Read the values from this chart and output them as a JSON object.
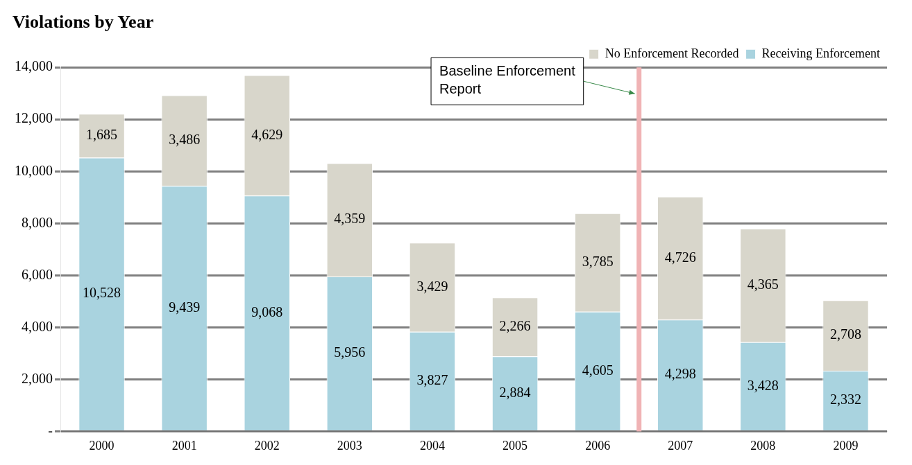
{
  "chart_data": {
    "type": "bar",
    "title": "Violations by Year",
    "stacked": true,
    "grid": "y",
    "legend": "top right",
    "categories": [
      "2000",
      "2001",
      "2002",
      "2003",
      "2004",
      "2005",
      "2006",
      "2007",
      "2008",
      "2009"
    ],
    "series": [
      {
        "name": "Receiving Enforcement",
        "color": "#a9d3df",
        "values": [
          10528,
          9439,
          9068,
          5956,
          3827,
          2884,
          4605,
          4298,
          3428,
          2332
        ],
        "value_labels": [
          "10,528",
          "9,439",
          "9,068",
          "5,956",
          "3,827",
          "2,884",
          "4,605",
          "4,298",
          "3,428",
          "2,332"
        ]
      },
      {
        "name": "No Enforcement Recorded",
        "color": "#d8d6cb",
        "values": [
          1685,
          3486,
          4629,
          4359,
          3429,
          2266,
          3785,
          4726,
          4365,
          2708
        ],
        "value_labels": [
          "1,685",
          "3,486",
          "4,629",
          "4,359",
          "3,429",
          "2,266",
          "3,785",
          "4,726",
          "4,365",
          "2,708"
        ]
      }
    ],
    "ylim": [
      0,
      14000
    ],
    "yticks": [
      {
        "value": 0,
        "label": "-"
      },
      {
        "value": 2000,
        "label": "2,000"
      },
      {
        "value": 4000,
        "label": "4,000"
      },
      {
        "value": 6000,
        "label": "6,000"
      },
      {
        "value": 8000,
        "label": "8,000"
      },
      {
        "value": 10000,
        "label": "10,000"
      },
      {
        "value": 12000,
        "label": "12,000"
      },
      {
        "value": 14000,
        "label": "14,000"
      }
    ],
    "ref_lines": [
      {
        "axis": "x",
        "value": "2007",
        "label": "Baseline Enforcement Report",
        "color": "#f0b3b5"
      }
    ]
  }
}
